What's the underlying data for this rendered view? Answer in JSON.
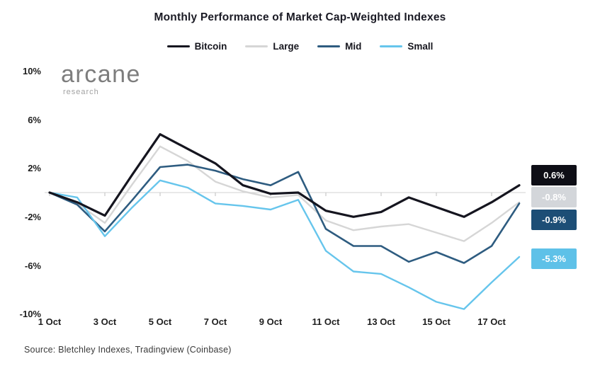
{
  "title": "Monthly Performance of Market Cap-Weighted Indexes",
  "logo": {
    "name": "arcane",
    "sub": "research"
  },
  "legend": {
    "items": [
      {
        "label": "Bitcoin",
        "color": "#15151f"
      },
      {
        "label": "Large",
        "color": "#d6d6d6"
      },
      {
        "label": "Mid",
        "color": "#2e5c80"
      },
      {
        "label": "Small",
        "color": "#66c5ec"
      }
    ]
  },
  "chart_data": {
    "type": "line",
    "title": "Monthly Performance of Market Cap-Weighted Indexes",
    "x": [
      "1 Oct",
      "2 Oct",
      "3 Oct",
      "4 Oct",
      "5 Oct",
      "6 Oct",
      "7 Oct",
      "8 Oct",
      "9 Oct",
      "10 Oct",
      "11 Oct",
      "12 Oct",
      "13 Oct",
      "14 Oct",
      "15 Oct",
      "16 Oct",
      "17 Oct",
      "18 Oct"
    ],
    "x_tick_labels": [
      "1 Oct",
      "3 Oct",
      "5 Oct",
      "7 Oct",
      "9 Oct",
      "11 Oct",
      "13 Oct",
      "15 Oct",
      "17 Oct"
    ],
    "y_tick_labels": [
      "10%",
      "6%",
      "2%",
      "-2%",
      "-6%",
      "-10%"
    ],
    "y_ticks": [
      10,
      6,
      2,
      -2,
      -6,
      -10
    ],
    "ylim": [
      -10,
      10
    ],
    "unit": "%",
    "grid": "zero-baseline-only",
    "legend_position": "top",
    "series": [
      {
        "name": "Bitcoin",
        "color": "#15151f",
        "values": [
          0,
          -0.8,
          -1.9,
          1.5,
          4.8,
          3.6,
          2.4,
          0.6,
          -0.1,
          0.0,
          -1.5,
          -2.0,
          -1.6,
          -0.4,
          -1.2,
          -2.0,
          -0.8,
          0.6
        ]
      },
      {
        "name": "Large",
        "color": "#d6d6d6",
        "values": [
          0,
          -0.9,
          -2.5,
          0.7,
          3.8,
          2.6,
          0.9,
          0.1,
          -0.4,
          -0.2,
          -2.3,
          -3.1,
          -2.8,
          -2.6,
          -3.3,
          -4.0,
          -2.5,
          -0.8
        ]
      },
      {
        "name": "Mid",
        "color": "#2e5c80",
        "values": [
          0,
          -1.0,
          -3.2,
          -0.6,
          2.1,
          2.3,
          1.8,
          1.1,
          0.6,
          1.7,
          -3.0,
          -4.4,
          -4.4,
          -5.7,
          -4.9,
          -5.8,
          -4.4,
          -0.9
        ]
      },
      {
        "name": "Small",
        "color": "#66c5ec",
        "values": [
          0,
          -0.4,
          -3.6,
          -1.2,
          1.0,
          0.4,
          -0.9,
          -1.1,
          -1.4,
          -0.6,
          -4.8,
          -6.5,
          -6.7,
          -7.8,
          -9.0,
          -9.6,
          -7.4,
          -5.3
        ]
      }
    ],
    "end_labels": [
      {
        "series": "Bitcoin",
        "text": "0.6%",
        "bg": "#0e0e16"
      },
      {
        "series": "Large",
        "text": "-0.8%",
        "bg": "#d3d6da"
      },
      {
        "series": "Mid",
        "text": "-0.9%",
        "bg": "#1d4e76"
      },
      {
        "series": "Small",
        "text": "-5.3%",
        "bg": "#5ec1e8"
      }
    ]
  },
  "source": "Source: Bletchley Indexes, Tradingview (Coinbase)"
}
